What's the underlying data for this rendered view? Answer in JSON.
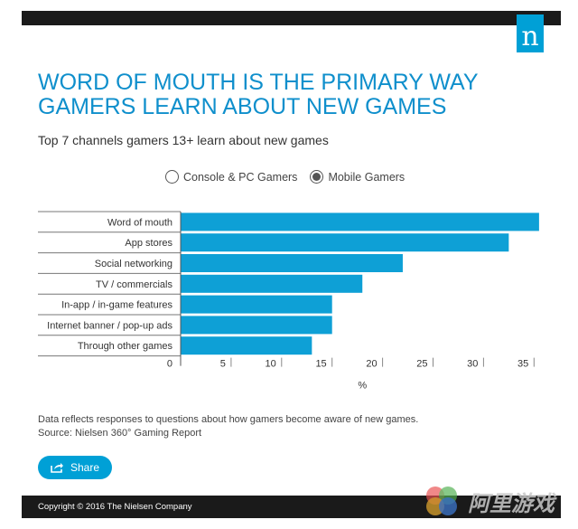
{
  "brand": {
    "logo_letter": "n",
    "color": "#00a0d6"
  },
  "headline": "WORD OF MOUTH IS THE PRIMARY WAY GAMERS LEARN ABOUT NEW GAMES",
  "subtitle": "Top 7 channels gamers 13+ learn about new games",
  "legend": {
    "options": [
      {
        "label": "Console & PC Gamers",
        "selected": false
      },
      {
        "label": "Mobile Gamers",
        "selected": true
      }
    ]
  },
  "chart_data": {
    "type": "bar",
    "orientation": "horizontal",
    "categories": [
      "Word of mouth",
      "App stores",
      "Social networking",
      "TV / commercials",
      "In-app / in-game features",
      "Internet banner / pop-up ads",
      "Through other games"
    ],
    "series": [
      {
        "name": "Mobile Gamers",
        "values": [
          35.5,
          32.5,
          22.0,
          18.0,
          15.0,
          15.0,
          13.0
        ],
        "color": "#0ea0d6"
      }
    ],
    "xlabel": "%",
    "xlim": [
      0,
      36
    ],
    "xticks": [
      0,
      5,
      10,
      15,
      20,
      25,
      30,
      35
    ],
    "grid": false
  },
  "footnote": {
    "line1": "Data reflects responses to questions about how gamers become aware of new games.",
    "line2": "Source: Nielsen 360° Gaming Report"
  },
  "share_label": "Share",
  "copyright": "Copyright © 2016 The Nielsen Company",
  "watermark": {
    "text": "阿里游戏"
  }
}
